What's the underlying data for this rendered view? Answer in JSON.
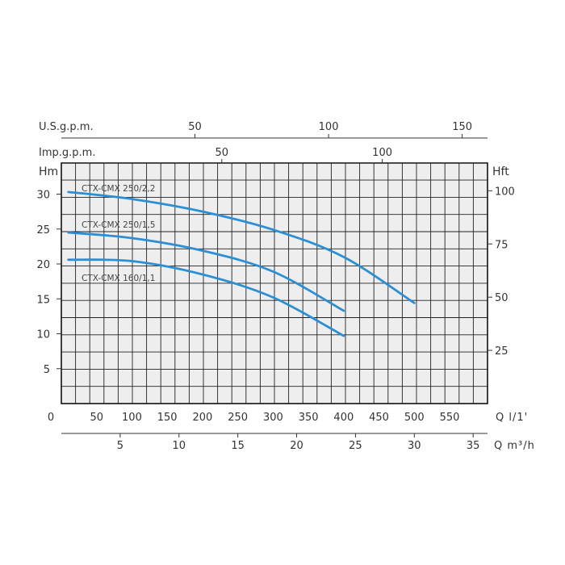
{
  "chart_data": {
    "type": "line",
    "title": "",
    "xlabel": "Q l/1'",
    "ylabel": "Hm",
    "xlim": [
      0,
      600
    ],
    "ylim": [
      0,
      35
    ],
    "x_ticks": [
      0,
      50,
      100,
      150,
      200,
      250,
      300,
      350,
      400,
      450,
      500,
      550
    ],
    "y_ticks": [
      5,
      10,
      15,
      20,
      25,
      30
    ],
    "grid": true,
    "secondary_axes": {
      "right": {
        "label": "Hft",
        "ticks": [
          25,
          50,
          75,
          100
        ]
      },
      "bottom2": {
        "label": "Q m³/h",
        "ticks": [
          5,
          10,
          15,
          20,
          25,
          30,
          35
        ]
      },
      "top_usgpm": {
        "label": "U.S.g.p.m.",
        "ticks": [
          50,
          100,
          150
        ]
      },
      "top_impgpm": {
        "label": "Imp.g.p.m.",
        "ticks": [
          50,
          100
        ]
      }
    },
    "series": [
      {
        "name": "CTX-CMX 250/2,2",
        "x": [
          10,
          100,
          200,
          300,
          400,
          500
        ],
        "y": [
          30.3,
          29.3,
          27.5,
          24.9,
          21.0,
          14.4
        ]
      },
      {
        "name": "CTX-CMX 250/1,5",
        "x": [
          10,
          100,
          200,
          300,
          400
        ],
        "y": [
          24.5,
          23.7,
          21.9,
          18.9,
          13.3
        ]
      },
      {
        "name": "CTX-CMX 160/1,1",
        "x": [
          10,
          100,
          200,
          300,
          400
        ],
        "y": [
          20.6,
          20.4,
          18.5,
          15.2,
          9.7
        ]
      }
    ],
    "colors": {
      "curve": "#2a8fd4",
      "grid": "#222222",
      "plot_bg": "#eeeeee"
    }
  }
}
